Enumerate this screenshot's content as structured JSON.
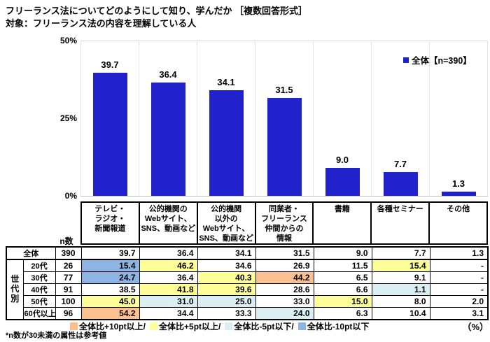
{
  "title": "フリーランス法についてどのようにして知り、学んだか ［複数回答形式］",
  "subtitle": "対象：フリーランス法の内容を理解している人",
  "note": "*n数が30未満の属性は参考値",
  "unit_label": "（%）",
  "colors": {
    "bar": "#2222cc",
    "p10": "#fac090",
    "p5": "#ffff99",
    "m5": "#daeef3",
    "m10": "#8db4e2"
  },
  "chart_data": {
    "type": "bar",
    "title": "フリーランス法についてどのようにして知り、学んだか",
    "categories": [
      "テレビ・ラジオ・新聞報道",
      "公的機関のWebサイト、SNS、動画など",
      "公的機関以外のWebサイト、SNS、動画など",
      "同業者・フリーランス仲間からの情報",
      "書籍",
      "各種セミナー",
      "その他"
    ],
    "category_labels_multiline": [
      "テレビ・\nラジオ・\n新聞報道",
      "公的機関の\nWebサイト、\nSNS、動画など",
      "公的機関\n以外の\nWebサイト、\nSNS、動画など",
      "同業者・\nフリーランス\n仲間からの\n情報",
      "書籍",
      "各種セミナー",
      "その他"
    ],
    "values": [
      39.7,
      36.4,
      34.1,
      31.5,
      9.0,
      7.7,
      1.3
    ],
    "ylim": [
      0,
      50
    ],
    "yticks": [
      "50%",
      "25%",
      "0%"
    ],
    "grid": "vertical-column-separators-only",
    "legend": {
      "label": "全体【n=390】",
      "position": "top-right"
    }
  },
  "table": {
    "n_header": "n数",
    "group_label": "世代別",
    "rows": [
      {
        "label": "全体",
        "n": "390",
        "values": [
          "39.7",
          "36.4",
          "34.1",
          "31.5",
          "9.0",
          "7.7",
          "1.3"
        ],
        "fills": [
          null,
          null,
          null,
          null,
          null,
          null,
          null
        ]
      },
      {
        "label": "20代",
        "n": "26",
        "values": [
          "15.4",
          "46.2",
          "34.6",
          "26.9",
          "11.5",
          "15.4",
          "-"
        ],
        "fills": [
          "m10",
          "p5",
          null,
          null,
          null,
          "p5",
          null
        ]
      },
      {
        "label": "30代",
        "n": "77",
        "values": [
          "24.7",
          "36.4",
          "40.3",
          "44.2",
          "6.5",
          "9.1",
          "-"
        ],
        "fills": [
          "m10",
          null,
          "p5",
          "p10",
          null,
          null,
          null
        ]
      },
      {
        "label": "40代",
        "n": "91",
        "values": [
          "38.5",
          "41.8",
          "39.6",
          "28.6",
          "6.6",
          "1.1",
          "-"
        ],
        "fills": [
          null,
          "p5",
          "p5",
          null,
          null,
          "m5",
          null
        ]
      },
      {
        "label": "50代",
        "n": "100",
        "values": [
          "45.0",
          "31.0",
          "25.0",
          "33.0",
          "15.0",
          "8.0",
          "2.0"
        ],
        "fills": [
          "p5",
          "m5",
          "m5",
          null,
          "p5",
          null,
          null
        ]
      },
      {
        "label": "60代以上",
        "n": "96",
        "values": [
          "54.2",
          "34.4",
          "33.3",
          "24.0",
          "6.3",
          "10.4",
          "3.1"
        ],
        "fills": [
          "p10",
          null,
          null,
          "m5",
          null,
          null,
          null
        ]
      }
    ]
  },
  "legend_bottom": {
    "items": [
      {
        "fill": "p10",
        "label": "全体比+10pt以上/"
      },
      {
        "fill": "p5",
        "label": "全体比+5pt以上/"
      },
      {
        "fill": "m5",
        "label": "全体比-5pt以下/"
      },
      {
        "fill": "m10",
        "label": "全体比-10pt以下"
      }
    ]
  }
}
